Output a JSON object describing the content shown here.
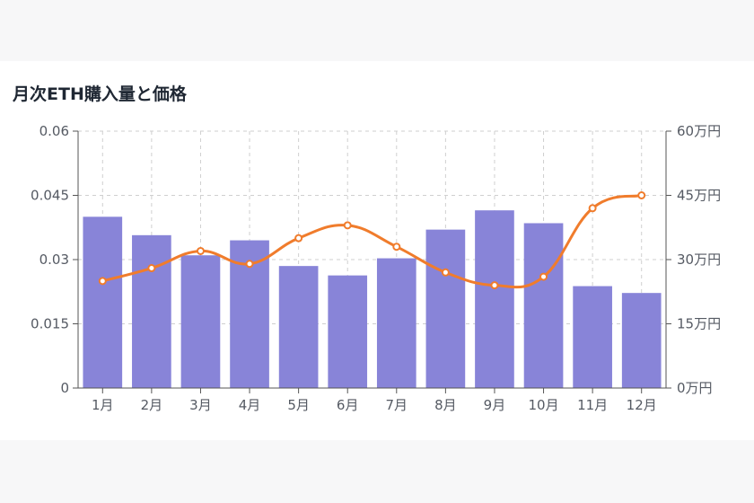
{
  "chart_data": {
    "type": "bar+line",
    "title": "月次ETH購入量と価格",
    "categories": [
      "1月",
      "2月",
      "3月",
      "4月",
      "5月",
      "6月",
      "7月",
      "8月",
      "9月",
      "10月",
      "11月",
      "12月"
    ],
    "series": [
      {
        "name": "ETH購入量",
        "type": "bar",
        "axis": "left",
        "color": "#8884d8",
        "values": [
          0.04,
          0.0357,
          0.031,
          0.0345,
          0.0285,
          0.0263,
          0.0303,
          0.037,
          0.0415,
          0.0385,
          0.0238,
          0.0222
        ]
      },
      {
        "name": "価格",
        "type": "line",
        "axis": "right",
        "color": "#f07c2c",
        "values": [
          250000,
          280000,
          320000,
          290000,
          350000,
          380000,
          330000,
          270000,
          240000,
          260000,
          420000,
          450000
        ]
      }
    ],
    "y_left": {
      "ylim": [
        0,
        0.06
      ],
      "ticks": [
        "0",
        "0.015",
        "0.03",
        "0.045",
        "0.06"
      ]
    },
    "y_right": {
      "ylim": [
        0,
        600000
      ],
      "ticks": [
        "0万円",
        "15万円",
        "30万円",
        "45万円",
        "60万円"
      ]
    },
    "grid": true
  }
}
